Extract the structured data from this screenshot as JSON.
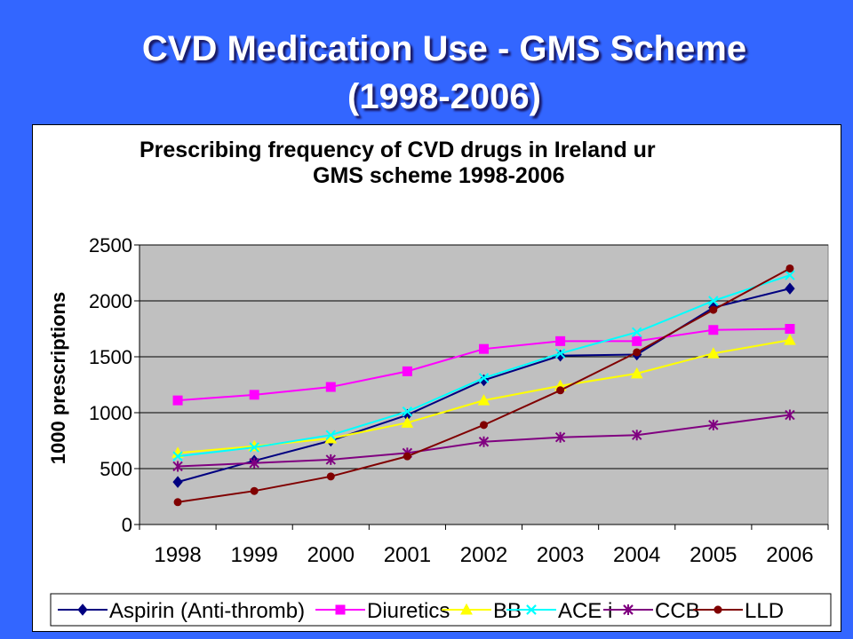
{
  "slide": {
    "title_line1": "CVD Medication Use - GMS Scheme",
    "title_line2": "(1998-2006)"
  },
  "colors": {
    "background": "#3366ff",
    "plot_area": "#c0c0c0"
  },
  "chart_data": {
    "type": "line",
    "title_line1": "Prescribing frequency of CVD drugs in Ireland ur",
    "title_line2": "GMS scheme 1998-2006",
    "xlabel": "",
    "ylabel": "1000 prescriptions",
    "ylim": [
      0,
      2500
    ],
    "yticks": [
      0,
      500,
      1000,
      1500,
      2000,
      2500
    ],
    "grid": true,
    "legend_position": "bottom",
    "categories": [
      "1998",
      "1999",
      "2000",
      "2001",
      "2002",
      "2003",
      "2004",
      "2005",
      "2006"
    ],
    "series": [
      {
        "name": "Aspirin (Anti-thromb)",
        "color": "#000080",
        "marker": "diamond",
        "values": [
          380,
          570,
          750,
          980,
          1290,
          1510,
          1520,
          1940,
          2110
        ]
      },
      {
        "name": "Diuretics",
        "color": "#ff00ff",
        "marker": "square",
        "values": [
          1110,
          1160,
          1230,
          1370,
          1570,
          1640,
          1640,
          1740,
          1750
        ]
      },
      {
        "name": "BB",
        "color": "#ffff00",
        "marker": "triangle",
        "values": [
          640,
          700,
          770,
          910,
          1110,
          1240,
          1350,
          1530,
          1650
        ]
      },
      {
        "name": "ACE i",
        "color": "#00ffff",
        "marker": "x",
        "values": [
          610,
          690,
          800,
          1010,
          1310,
          1530,
          1720,
          2000,
          2230
        ]
      },
      {
        "name": "CCB",
        "color": "#800080",
        "marker": "star",
        "values": [
          520,
          550,
          580,
          640,
          740,
          780,
          800,
          890,
          980
        ]
      },
      {
        "name": "LLD",
        "color": "#800000",
        "marker": "circle",
        "values": [
          200,
          300,
          430,
          610,
          890,
          1200,
          1540,
          1920,
          2290
        ]
      }
    ]
  }
}
